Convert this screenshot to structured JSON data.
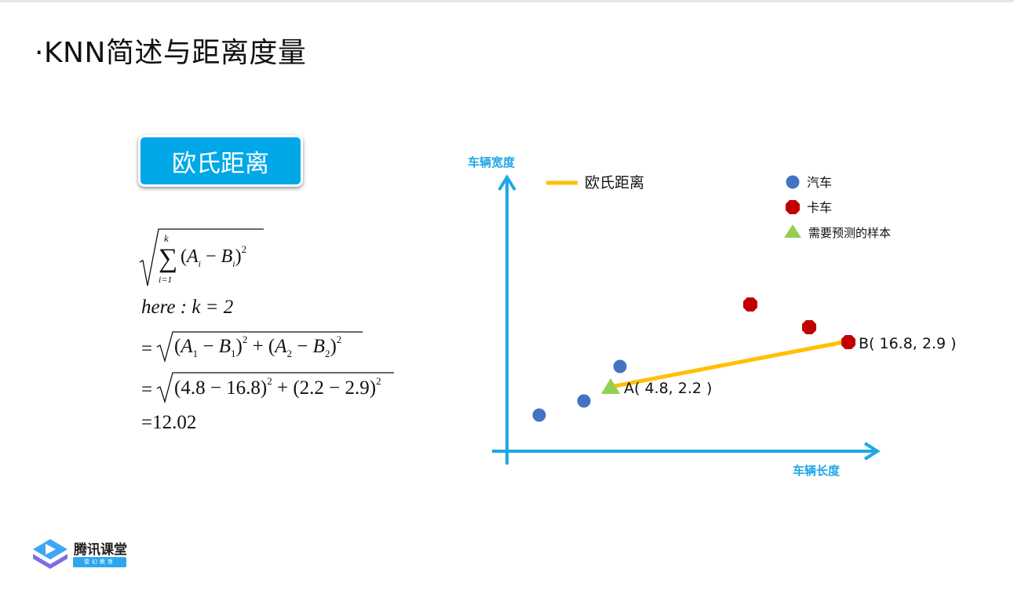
{
  "slide": {
    "title": "·KNN简述与距离度量",
    "badge": "欧氏距离"
  },
  "formula": {
    "sum_upper": "k",
    "sum_lower": "i=1",
    "here_line": "here : k = 2",
    "line2": "= √(A₁ − B₁)² + (A₂ − B₂)²",
    "line3": "= √(4.8 − 16.8)² + (2.2 − 2.9)²",
    "result": "=12.02"
  },
  "diagram": {
    "y_axis_label": "车辆宽度",
    "x_axis_label": "车辆长度",
    "legend": {
      "line_label": "欧氏距离",
      "car_label": "汽车",
      "truck_label": "卡车",
      "sample_label": "需要预测的样本"
    },
    "point_a_label": "A( 4.8,  2.2 )",
    "point_b_label": "B( 16.8,  2.9 )",
    "colors": {
      "axis": "#1ea7e6",
      "car": "#4472c4",
      "truck": "#c00000",
      "sample": "#92d050",
      "line": "#ffc000"
    }
  },
  "logo": {
    "name": "腾讯课堂",
    "sub": "雷幻教育"
  }
}
